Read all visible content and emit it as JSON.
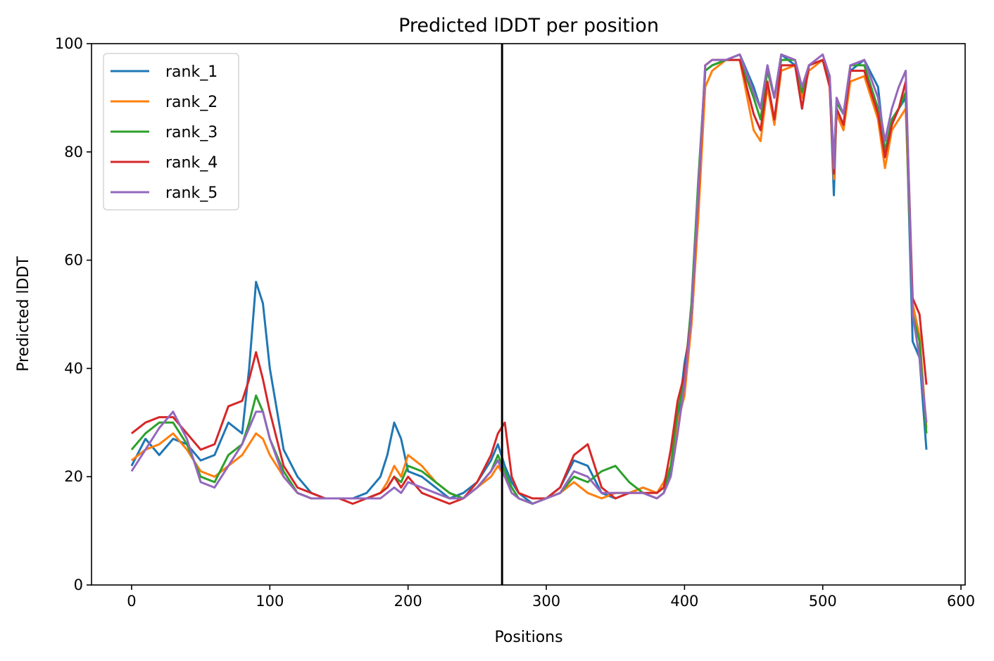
{
  "chart_data": {
    "type": "line",
    "title": "Predicted lDDT per position",
    "xlabel": "Positions",
    "ylabel": "Predicted lDDT",
    "xlim": [
      -29,
      603
    ],
    "ylim": [
      0,
      100
    ],
    "xticks": [
      0,
      100,
      200,
      300,
      400,
      500,
      600
    ],
    "yticks": [
      0,
      20,
      40,
      60,
      80,
      100
    ],
    "grid": false,
    "legend_position": "top-left",
    "vertical_line": {
      "x": 268,
      "color": "#000000"
    },
    "x": [
      0,
      10,
      20,
      30,
      40,
      50,
      60,
      70,
      80,
      85,
      90,
      95,
      100,
      110,
      120,
      130,
      140,
      150,
      160,
      170,
      180,
      185,
      190,
      195,
      200,
      210,
      220,
      230,
      240,
      250,
      260,
      265,
      270,
      275,
      280,
      290,
      300,
      310,
      320,
      330,
      340,
      350,
      360,
      370,
      380,
      385,
      390,
      395,
      400,
      405,
      410,
      415,
      420,
      430,
      440,
      450,
      455,
      460,
      465,
      470,
      480,
      485,
      490,
      500,
      505,
      508,
      510,
      515,
      520,
      530,
      540,
      545,
      550,
      555,
      560,
      565,
      570,
      575
    ],
    "series": [
      {
        "name": "rank_1",
        "color": "#1f77b4",
        "values": [
          22,
          27,
          24,
          27,
          26,
          23,
          24,
          30,
          28,
          40,
          56,
          52,
          40,
          25,
          20,
          17,
          16,
          16,
          16,
          17,
          20,
          24,
          30,
          27,
          21,
          20,
          18,
          16,
          17,
          19,
          23,
          26,
          22,
          19,
          17,
          15,
          16,
          18,
          23,
          22,
          17,
          16,
          17,
          18,
          17,
          18,
          21,
          30,
          41,
          48,
          70,
          95,
          96,
          97,
          98,
          92,
          88,
          96,
          90,
          98,
          96,
          88,
          96,
          97,
          93,
          72,
          88,
          85,
          95,
          97,
          92,
          80,
          86,
          88,
          90,
          45,
          42,
          25
        ]
      },
      {
        "name": "rank_2",
        "color": "#ff7f0e",
        "values": [
          23,
          25,
          26,
          28,
          25,
          21,
          20,
          22,
          24,
          26,
          28,
          27,
          24,
          20,
          17,
          16,
          16,
          16,
          16,
          16,
          17,
          19,
          22,
          20,
          24,
          22,
          19,
          17,
          16,
          18,
          20,
          22,
          20,
          18,
          16,
          15,
          16,
          17,
          19,
          17,
          16,
          17,
          17,
          18,
          17,
          19,
          22,
          30,
          35,
          48,
          68,
          92,
          95,
          97,
          97,
          84,
          82,
          92,
          85,
          95,
          96,
          90,
          95,
          97,
          92,
          75,
          87,
          84,
          93,
          94,
          86,
          77,
          84,
          86,
          88,
          52,
          46,
          29
        ]
      },
      {
        "name": "rank_3",
        "color": "#2ca02c",
        "values": [
          25,
          28,
          30,
          30,
          26,
          20,
          19,
          24,
          26,
          30,
          35,
          32,
          27,
          21,
          17,
          16,
          16,
          16,
          16,
          16,
          17,
          18,
          20,
          19,
          22,
          21,
          19,
          17,
          16,
          18,
          21,
          24,
          21,
          18,
          16,
          15,
          16,
          17,
          20,
          19,
          21,
          22,
          19,
          17,
          16,
          17,
          22,
          32,
          38,
          52,
          75,
          95,
          96,
          97,
          97,
          90,
          86,
          95,
          90,
          97,
          97,
          91,
          96,
          97,
          94,
          78,
          89,
          87,
          96,
          96,
          88,
          80,
          86,
          88,
          91,
          50,
          45,
          28
        ]
      },
      {
        "name": "rank_4",
        "color": "#d62728",
        "values": [
          28,
          30,
          31,
          31,
          28,
          25,
          26,
          33,
          34,
          38,
          43,
          38,
          32,
          22,
          18,
          17,
          16,
          16,
          15,
          16,
          17,
          18,
          20,
          18,
          20,
          17,
          16,
          15,
          16,
          19,
          24,
          28,
          30,
          20,
          17,
          16,
          16,
          18,
          24,
          26,
          18,
          16,
          17,
          17,
          17,
          18,
          25,
          34,
          39,
          50,
          72,
          96,
          97,
          97,
          97,
          87,
          84,
          93,
          86,
          96,
          96,
          88,
          96,
          97,
          92,
          76,
          88,
          85,
          95,
          95,
          87,
          79,
          85,
          88,
          93,
          53,
          50,
          37
        ]
      },
      {
        "name": "rank_5",
        "color": "#9467bd",
        "values": [
          21,
          25,
          29,
          32,
          27,
          19,
          18,
          22,
          26,
          29,
          32,
          32,
          27,
          20,
          17,
          16,
          16,
          16,
          16,
          16,
          16,
          17,
          18,
          17,
          19,
          18,
          17,
          16,
          16,
          18,
          21,
          23,
          20,
          17,
          16,
          15,
          16,
          17,
          21,
          20,
          17,
          17,
          17,
          17,
          16,
          17,
          20,
          28,
          37,
          50,
          73,
          96,
          97,
          97,
          98,
          91,
          88,
          96,
          90,
          98,
          97,
          92,
          96,
          98,
          94,
          77,
          90,
          87,
          96,
          97,
          90,
          82,
          88,
          92,
          95,
          50,
          42,
          30
        ]
      }
    ]
  }
}
